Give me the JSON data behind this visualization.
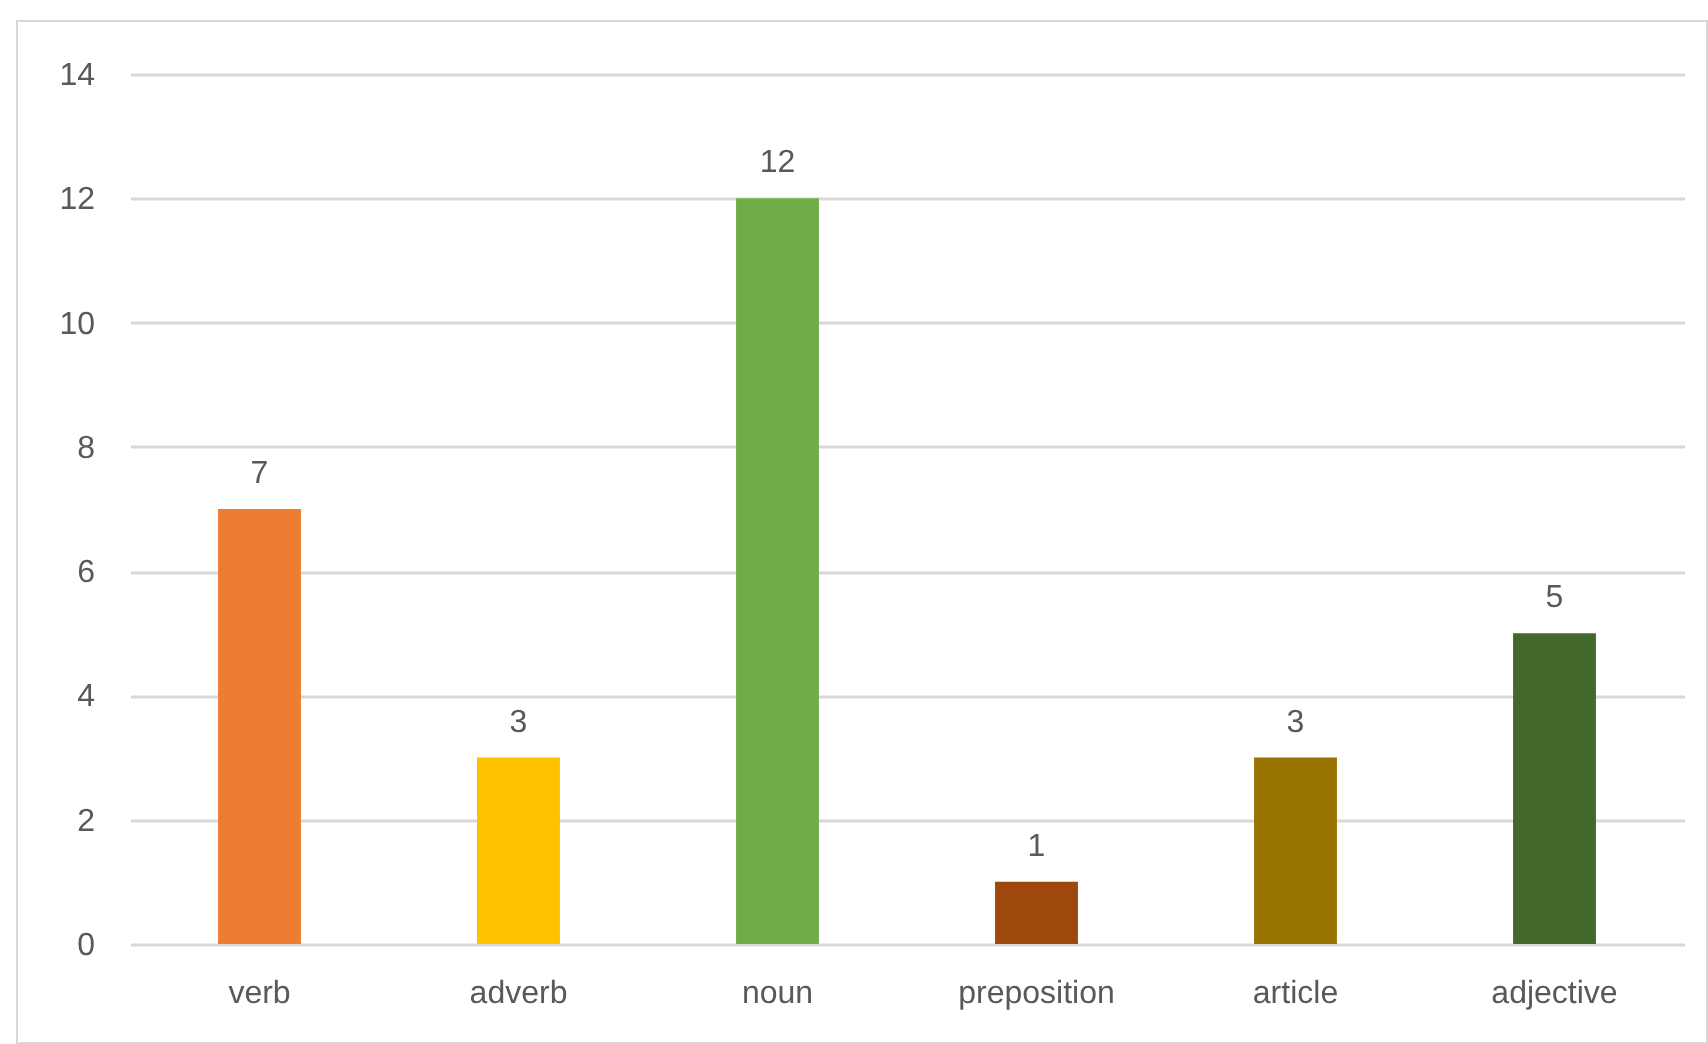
{
  "chart_data": {
    "type": "bar",
    "categories": [
      "verb",
      "adverb",
      "noun",
      "preposition",
      "article",
      "adjective"
    ],
    "values": [
      7,
      3,
      12,
      1,
      3,
      5
    ],
    "colors": [
      "#ed7d31",
      "#ffc000",
      "#70ad47",
      "#9e480e",
      "#997300",
      "#43682b"
    ],
    "ylim": [
      0,
      14
    ],
    "yticks": [
      0,
      2,
      4,
      6,
      8,
      10,
      12,
      14
    ],
    "grid": "y",
    "data_labels": true
  }
}
